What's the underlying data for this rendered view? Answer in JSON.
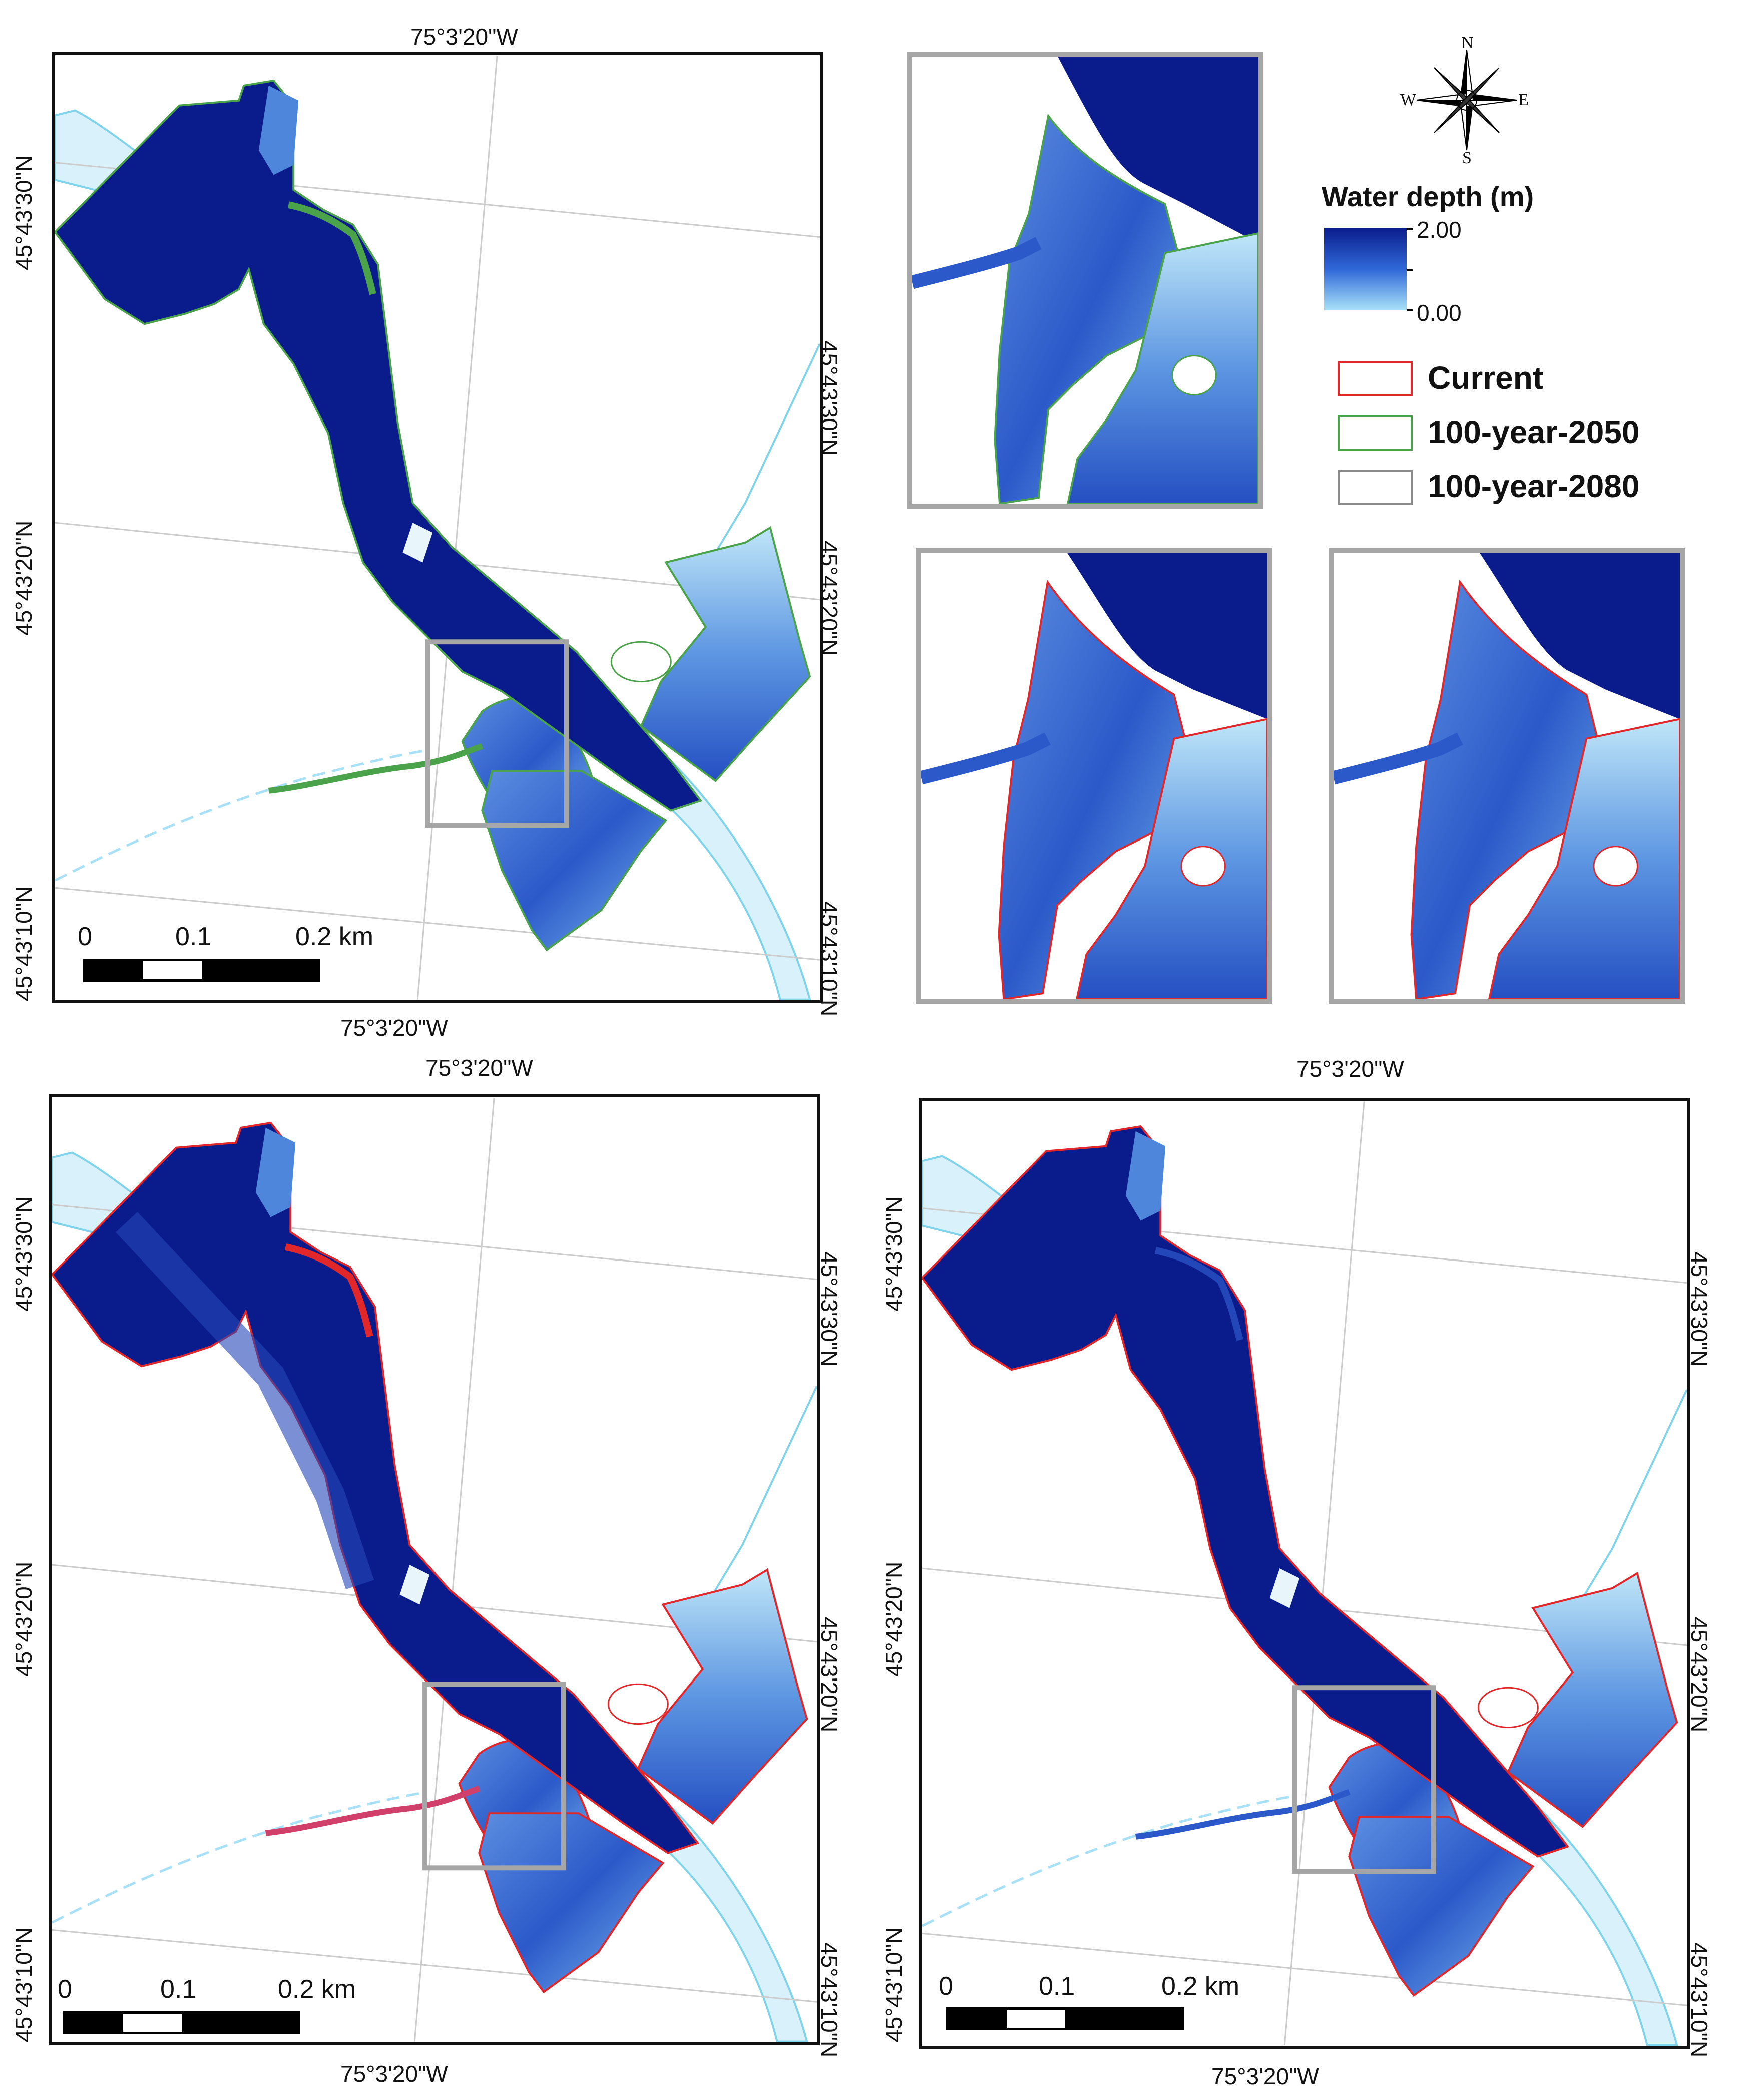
{
  "colors": {
    "water_deep": "#0a1c8c",
    "water_shallow": "#a8e1f7",
    "river": "#d9f1fb",
    "river_line": "#7fd3ea",
    "current": "#e2272b",
    "y2050": "#4aa24a",
    "y2080": "#8a8a8a",
    "inset_border": "#a6a6a6"
  },
  "map_labels": {
    "lon": "75°3'20\"W",
    "lat_30": "45°43'30\"N",
    "lat_20": "45°43'20\"N",
    "lat_10": "45°43'10\"N"
  },
  "scale": {
    "zero": "0",
    "mid": "0.1",
    "end": "0.2 km"
  },
  "legend": {
    "title": "Water depth (m)",
    "max": "2.00",
    "min": "0.00",
    "items": [
      {
        "label": "Current",
        "color": "#e2272b"
      },
      {
        "label": "100-year-2050",
        "color": "#4aa24a"
      },
      {
        "label": "100-year-2080",
        "color": "#8a8a8a"
      }
    ]
  },
  "compass": {
    "n": "N",
    "s": "S",
    "e": "E",
    "w": "W"
  }
}
